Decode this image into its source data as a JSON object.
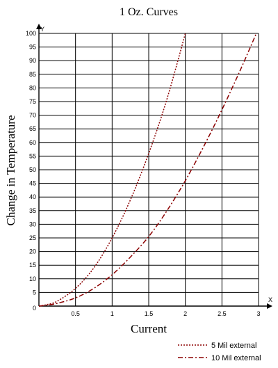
{
  "chart_data": {
    "type": "line",
    "title": "1 Oz. Curves",
    "xlabel": "Current",
    "ylabel": "Change in Temperature",
    "x_axis_marker": "X",
    "y_axis_marker": "Y",
    "origin_label": "0",
    "xlim": [
      0,
      3
    ],
    "ylim": [
      0,
      100
    ],
    "x_ticks": [
      0.5,
      1,
      1.5,
      2,
      2.5,
      3
    ],
    "x_tick_labels": [
      "0.5",
      "1",
      "1.5",
      "2",
      "2.5",
      "3"
    ],
    "y_ticks": [
      5,
      10,
      15,
      20,
      25,
      30,
      35,
      40,
      45,
      50,
      55,
      60,
      65,
      70,
      75,
      80,
      85,
      90,
      95,
      100
    ],
    "y_tick_labels": [
      "5",
      "10",
      "15",
      "20",
      "25",
      "30",
      "35",
      "40",
      "45",
      "50",
      "55",
      "60",
      "65",
      "70",
      "75",
      "80",
      "85",
      "90",
      "95",
      "100"
    ],
    "grid": true,
    "legend_position": "bottom-right",
    "series": [
      {
        "name": "5 Mil external",
        "color": "#8b0000",
        "dash": "dotted",
        "x": [
          0,
          0.1,
          0.25,
          0.5,
          0.75,
          1,
          1.25,
          1.5,
          1.75,
          2
        ],
        "y": [
          0,
          0.5,
          1.8,
          6.5,
          14,
          25,
          39,
          56,
          76,
          100
        ]
      },
      {
        "name": "10 Mil external",
        "color": "#8b0000",
        "dash": "dash-dot",
        "x": [
          0,
          0.1,
          0.25,
          0.5,
          0.75,
          1,
          1.25,
          1.5,
          1.75,
          2,
          2.25,
          2.5,
          2.75,
          2.97
        ],
        "y": [
          0,
          0.3,
          1,
          3,
          6.5,
          11.5,
          18,
          25.5,
          35,
          46,
          58.5,
          72,
          86.5,
          100
        ]
      }
    ]
  }
}
